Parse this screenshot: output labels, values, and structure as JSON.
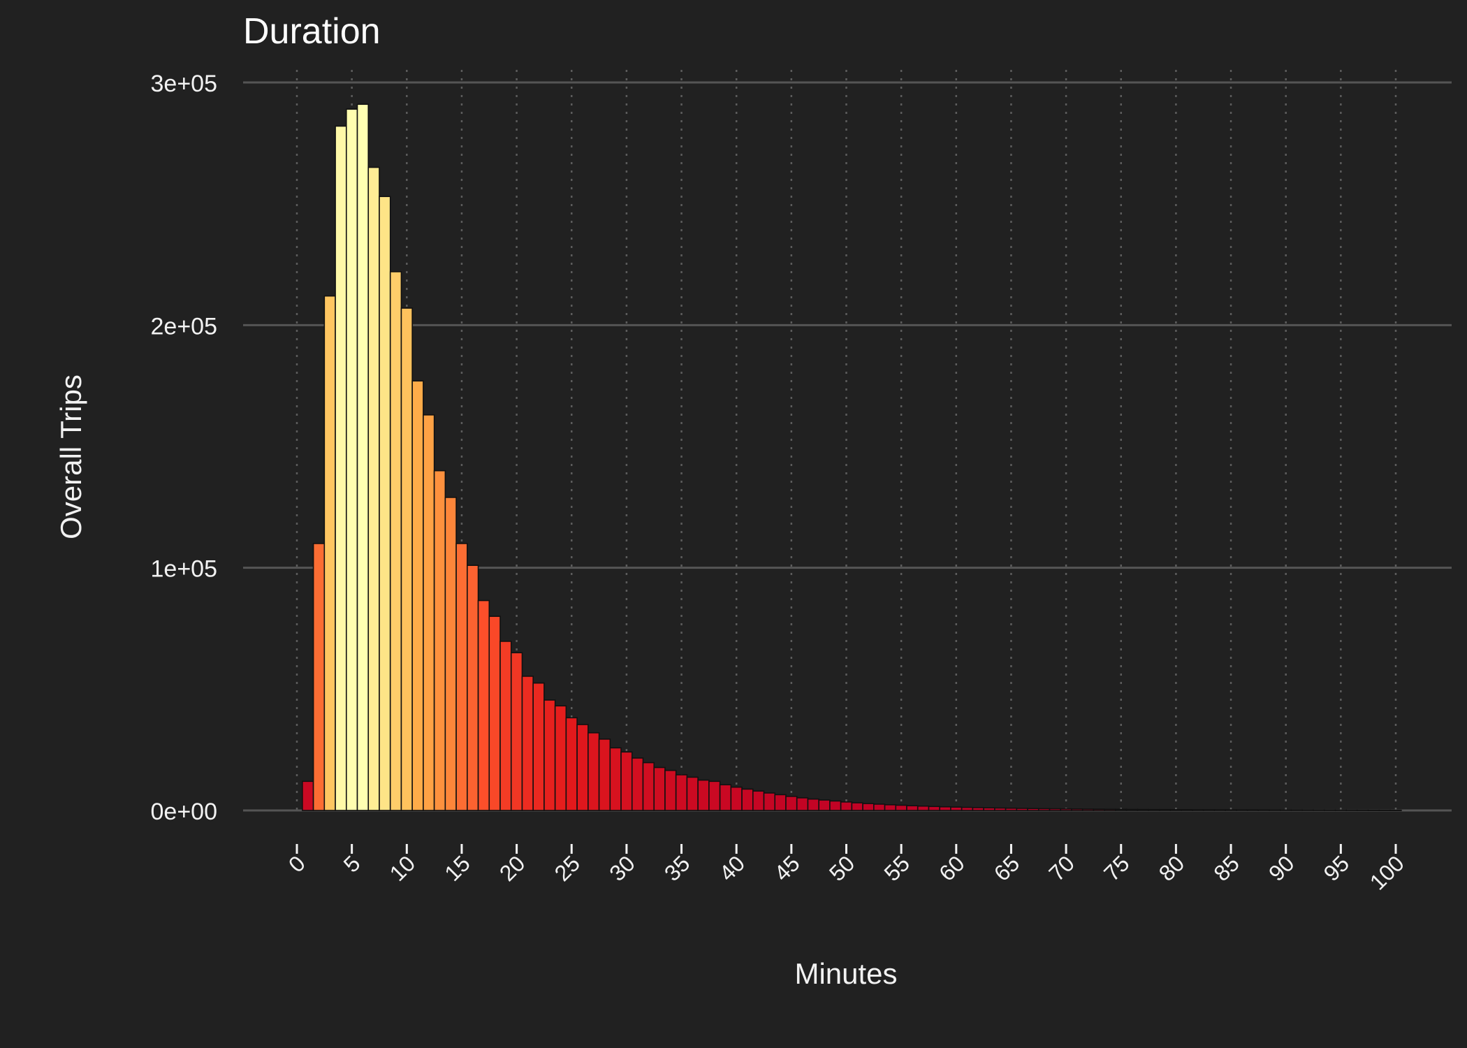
{
  "chart_data": {
    "type": "bar",
    "title": "Duration",
    "xlabel": "Minutes",
    "ylabel": "Overall Trips",
    "xlim": [
      -1,
      101
    ],
    "ylim": [
      0,
      300000
    ],
    "x_ticks": [
      0,
      5,
      10,
      15,
      20,
      25,
      30,
      35,
      40,
      45,
      50,
      55,
      60,
      65,
      70,
      75,
      80,
      85,
      90,
      95,
      100
    ],
    "x_tick_labels": [
      "0",
      "5",
      "10",
      "15",
      "20",
      "25",
      "30",
      "35",
      "40",
      "45",
      "50",
      "55",
      "60",
      "65",
      "70",
      "75",
      "80",
      "85",
      "90",
      "95",
      "100"
    ],
    "y_ticks": [
      0,
      100000,
      200000,
      300000
    ],
    "y_tick_labels": [
      "0e+00",
      "1e+05",
      "2e+05",
      "3e+05"
    ],
    "grid": {
      "y_major": true,
      "x_dotted": true
    },
    "legend": "none",
    "color_scale": [
      "#bd0026",
      "#e31a1c",
      "#fc4e2a",
      "#fd8d3c",
      "#feb24c",
      "#fed976",
      "#ffffb2"
    ],
    "x": [
      1,
      2,
      3,
      4,
      5,
      6,
      7,
      8,
      9,
      10,
      11,
      12,
      13,
      14,
      15,
      16,
      17,
      18,
      19,
      20,
      21,
      22,
      23,
      24,
      25,
      26,
      27,
      28,
      29,
      30,
      31,
      32,
      33,
      34,
      35,
      36,
      37,
      38,
      39,
      40,
      41,
      42,
      43,
      44,
      45,
      46,
      47,
      48,
      49,
      50,
      51,
      52,
      53,
      54,
      55,
      56,
      57,
      58,
      59,
      60,
      61,
      62,
      63,
      64,
      65,
      66,
      67,
      68,
      69,
      70,
      71,
      72,
      73,
      74,
      75,
      76,
      77,
      78,
      79,
      80,
      81,
      82,
      83,
      84,
      85,
      86,
      87,
      88,
      89,
      90,
      91,
      92,
      93,
      94,
      95,
      96,
      97,
      98,
      99,
      100
    ],
    "values": [
      12000,
      110000,
      212000,
      282000,
      289000,
      291000,
      265000,
      253000,
      222000,
      207000,
      177000,
      163000,
      140000,
      129000,
      110000,
      101000,
      86500,
      80000,
      69700,
      65000,
      55300,
      52500,
      45500,
      43100,
      38200,
      35400,
      32000,
      29400,
      25800,
      24100,
      21600,
      19700,
      17700,
      16500,
      14700,
      13700,
      12500,
      12000,
      10600,
      9600,
      8800,
      8000,
      7200,
      6500,
      5800,
      5200,
      4700,
      4300,
      3900,
      3500,
      3150,
      2850,
      2600,
      2350,
      2150,
      1950,
      1800,
      1650,
      1500,
      1380,
      1270,
      1170,
      1080,
      1000,
      930,
      860,
      800,
      740,
      690,
      640,
      600,
      560,
      520,
      490,
      460,
      430,
      400,
      375,
      350,
      330,
      310,
      290,
      270,
      255,
      240,
      225,
      210,
      200,
      188,
      176,
      166,
      156,
      147,
      139,
      131,
      124,
      117,
      110,
      104,
      98
    ]
  }
}
